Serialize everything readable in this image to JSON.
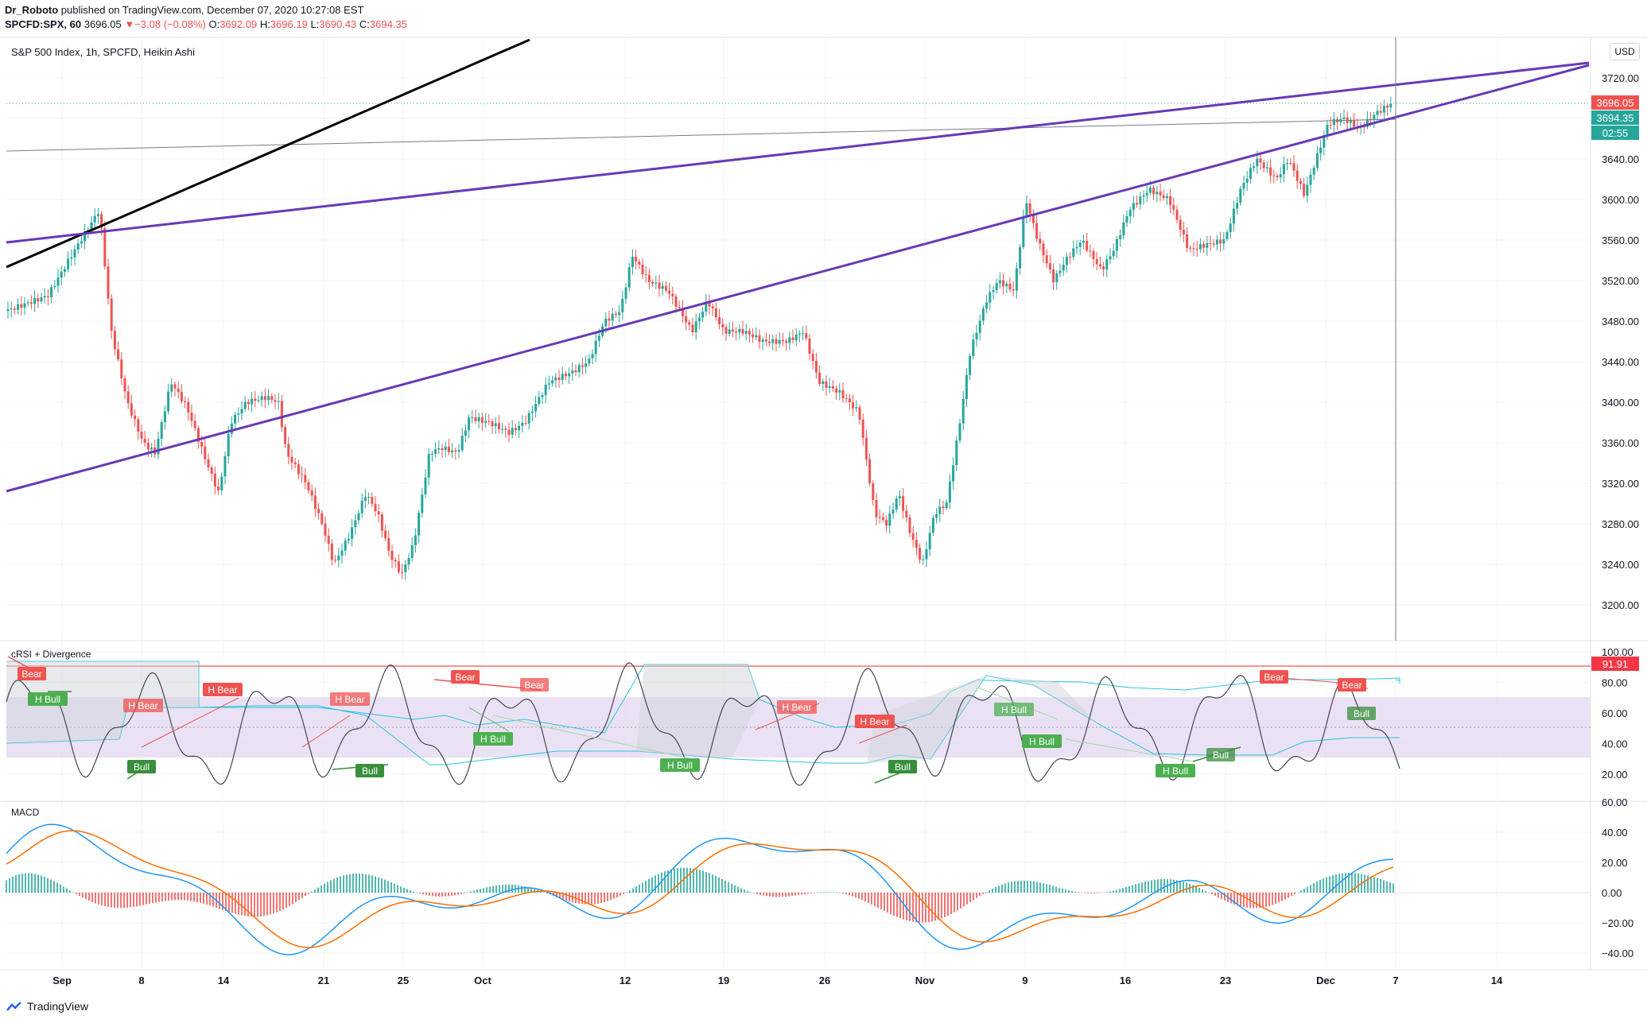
{
  "header": {
    "author": "Dr_Roboto",
    "published": "published on TradingView.com, December 07, 2020 10:27:08 EST",
    "symbol": "SPCFD:SPX, 60",
    "last": "3696.05",
    "change_arrow": "▼",
    "change": "−3.08 (−0.08%)",
    "o_label": "O:",
    "o_value": "3692.09",
    "h_label": "H:",
    "h_value": "3696.19",
    "l_label": "L:",
    "l_value": "3690.43",
    "c_label": "C:",
    "c_value": "3694.35"
  },
  "main_pane": {
    "title": "S&P 500 Index, 1h, SPCFD, Heikin Ashi",
    "currency_button": "USD",
    "price_ticks": [
      "3720.00",
      "3680.00",
      "3640.00",
      "3600.00",
      "3560.00",
      "3520.00",
      "3480.00",
      "3440.00",
      "3400.00",
      "3360.00",
      "3320.00",
      "3280.00",
      "3240.00",
      "3200.00"
    ],
    "price_tags": {
      "last": "3696.05",
      "close": "3694.35",
      "countdown": "02:55"
    }
  },
  "rsi_pane": {
    "title": "cRSI + Divergence",
    "ticks": [
      "100.00",
      "80.00",
      "60.00",
      "40.00",
      "20.00"
    ],
    "value_tag": "91.91",
    "labels": [
      {
        "text": "Bear",
        "kind": "bear"
      },
      {
        "text": "H Bull",
        "kind": "bull"
      },
      {
        "text": "H Bear",
        "kind": "bear"
      },
      {
        "text": "H Bear",
        "kind": "bear"
      },
      {
        "text": "Bull",
        "kind": "bull"
      },
      {
        "text": "H Bear",
        "kind": "bear"
      },
      {
        "text": "Bull",
        "kind": "bull"
      },
      {
        "text": "Bear",
        "kind": "bear"
      },
      {
        "text": "Bear",
        "kind": "bear"
      },
      {
        "text": "H Bull",
        "kind": "bull"
      },
      {
        "text": "H Bull",
        "kind": "bull"
      },
      {
        "text": "H Bear",
        "kind": "bear"
      },
      {
        "text": "H Bear",
        "kind": "bear"
      },
      {
        "text": "Bull",
        "kind": "bull"
      },
      {
        "text": "H Bull",
        "kind": "bull"
      },
      {
        "text": "H Bull",
        "kind": "bull"
      },
      {
        "text": "Bear",
        "kind": "bear"
      },
      {
        "text": "Bull",
        "kind": "bull"
      },
      {
        "text": "H Bull",
        "kind": "bull"
      },
      {
        "text": "Bear",
        "kind": "bear"
      },
      {
        "text": "Bull",
        "kind": "bull"
      }
    ]
  },
  "macd_pane": {
    "title": "MACD",
    "ticks": [
      "60.00",
      "40.00",
      "20.00",
      "0.00",
      "−20.00",
      "−40.00"
    ]
  },
  "x_axis": {
    "labels": [
      "Sep",
      "8",
      "14",
      "21",
      "25",
      "Oct",
      "12",
      "19",
      "26",
      "Nov",
      "9",
      "16",
      "23",
      "Dec",
      "7",
      "14"
    ]
  },
  "footer": {
    "brand": "TradingView"
  },
  "colors": {
    "up": "#26a69a",
    "down": "#ef5350",
    "trendline_purple": "#673ab7",
    "trendline_black": "#000000",
    "rsi_band": "#e1d5f0",
    "macd_line": "#2196f3",
    "signal_line": "#ff6d00"
  }
}
